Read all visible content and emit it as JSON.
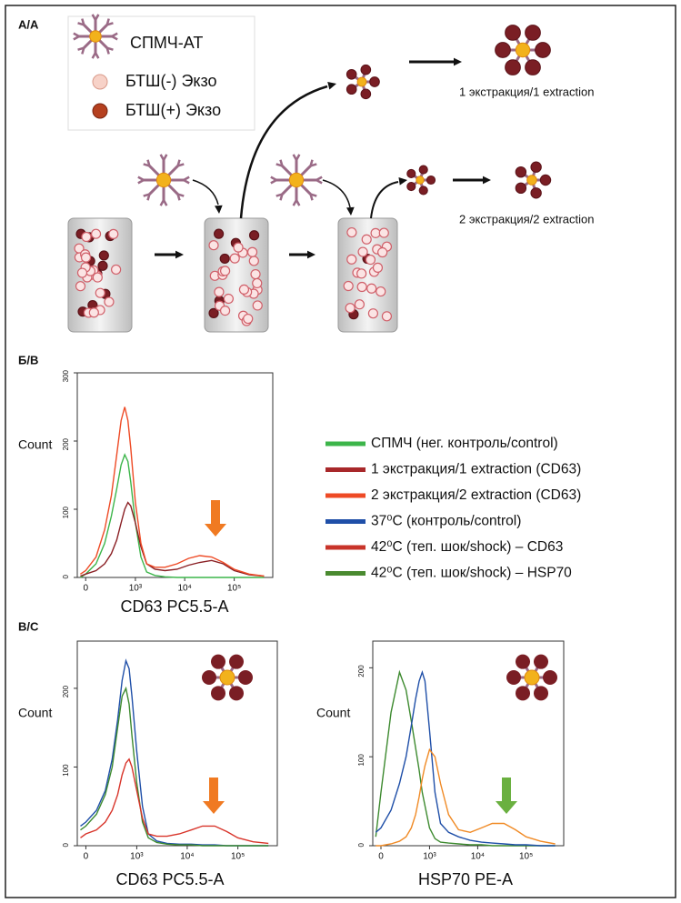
{
  "diagram": {
    "label": "А/А",
    "legend": [
      "СПМЧ-АТ",
      "БТШ(-) Экзо",
      "БТШ(+) Экзо"
    ],
    "steps": [
      "1 экстракция/1 extraction",
      "2 экстракция/2 extraction"
    ]
  },
  "legend": {
    "items": [
      {
        "label": "СПМЧ (нег. контроль/control)",
        "color": "#3cb54a"
      },
      {
        "label": "1 экстракция/1 extraction (CD63)",
        "color": "#a8282a"
      },
      {
        "label": "2 экстракция/2 extraction (CD63)",
        "color": "#ee4a25"
      },
      {
        "label": "37⁰C (контроль/control)",
        "color": "#1f4fa8"
      },
      {
        "label": "42⁰C (теп. шок/shock) – CD63",
        "color": "#c8342a"
      },
      {
        "label": "42⁰C (теп. шок/shock) – HSP70",
        "color": "#4a8a30"
      }
    ]
  },
  "chart_data": [
    {
      "type": "line",
      "panel_label": "Б/В",
      "xlabel": "CD63 PC5.5-A",
      "ylabel": "Count",
      "xscale": "biexponential",
      "x": [
        -50,
        0,
        100,
        200,
        300,
        400,
        500,
        600,
        700,
        800,
        1000,
        1300,
        1700,
        2500,
        4000,
        7000,
        12000,
        20000,
        35000,
        60000,
        100000,
        200000,
        400000
      ],
      "xlim": [
        -80,
        600000
      ],
      "xticks": [
        {
          "value": 0,
          "label": "0"
        },
        {
          "value": 1000,
          "label": "10³"
        },
        {
          "value": 10000,
          "label": "10⁴"
        },
        {
          "value": 100000,
          "label": "10⁵"
        }
      ],
      "ylim": [
        0,
        300
      ],
      "yticks": [
        0,
        100,
        200,
        300
      ],
      "series": [
        {
          "color": "#3cb54a",
          "values": [
            0,
            5,
            20,
            50,
            90,
            130,
            165,
            180,
            170,
            140,
            80,
            30,
            8,
            3,
            1,
            0,
            0,
            0,
            0,
            0,
            0,
            0,
            0
          ]
        },
        {
          "color": "#8a1f24",
          "values": [
            2,
            5,
            10,
            20,
            35,
            55,
            80,
            100,
            110,
            105,
            80,
            45,
            20,
            12,
            10,
            12,
            18,
            22,
            25,
            20,
            10,
            4,
            2
          ]
        },
        {
          "color": "#ee4a25",
          "values": [
            5,
            10,
            30,
            70,
            120,
            180,
            230,
            250,
            230,
            190,
            110,
            50,
            20,
            15,
            15,
            20,
            28,
            32,
            30,
            22,
            12,
            5,
            2
          ]
        }
      ]
    },
    {
      "type": "line",
      "panel_label": "В/С",
      "xlabel": "CD63 PC5.5-A",
      "ylabel": "Count",
      "xscale": "biexponential",
      "x": [
        -50,
        0,
        100,
        200,
        300,
        400,
        500,
        600,
        700,
        800,
        1000,
        1300,
        1700,
        2500,
        4000,
        7000,
        12000,
        20000,
        35000,
        60000,
        100000,
        200000,
        400000
      ],
      "xlim": [
        -80,
        600000
      ],
      "xticks": [
        {
          "value": 0,
          "label": "0"
        },
        {
          "value": 1000,
          "label": "10³"
        },
        {
          "value": 10000,
          "label": "10⁴"
        },
        {
          "value": 100000,
          "label": "10⁵"
        }
      ],
      "ylim": [
        0,
        260
      ],
      "yticks": [
        0,
        100,
        200
      ],
      "series": [
        {
          "color": "#1f4fa8",
          "values": [
            25,
            30,
            45,
            70,
            110,
            160,
            210,
            235,
            225,
            190,
            120,
            50,
            15,
            6,
            3,
            2,
            2,
            1,
            1,
            0,
            0,
            0,
            0
          ]
        },
        {
          "color": "#3d8a2f",
          "values": [
            20,
            25,
            40,
            65,
            100,
            150,
            190,
            200,
            180,
            140,
            80,
            30,
            10,
            4,
            2,
            1,
            1,
            0,
            0,
            0,
            0,
            0,
            0
          ]
        },
        {
          "color": "#d8342a",
          "values": [
            10,
            15,
            20,
            30,
            45,
            65,
            90,
            105,
            110,
            100,
            70,
            35,
            15,
            12,
            12,
            15,
            20,
            25,
            25,
            18,
            10,
            5,
            3
          ]
        }
      ]
    },
    {
      "type": "line",
      "xlabel": "HSP70 PE-A",
      "ylabel": "Count",
      "xscale": "biexponential",
      "x": [
        -50,
        0,
        100,
        200,
        300,
        400,
        500,
        600,
        700,
        800,
        1000,
        1300,
        1700,
        2500,
        4000,
        7000,
        12000,
        20000,
        35000,
        60000,
        100000,
        200000,
        400000
      ],
      "xlim": [
        -80,
        600000
      ],
      "xticks": [
        {
          "value": 0,
          "label": "0"
        },
        {
          "value": 1000,
          "label": "10³"
        },
        {
          "value": 10000,
          "label": "10⁴"
        },
        {
          "value": 100000,
          "label": "10⁵"
        }
      ],
      "ylim": [
        0,
        230
      ],
      "yticks": [
        0,
        100,
        200
      ],
      "series": [
        {
          "color": "#3d8a2f",
          "values": [
            10,
            60,
            150,
            195,
            175,
            140,
            110,
            85,
            60,
            45,
            20,
            8,
            4,
            3,
            2,
            1,
            1,
            0,
            0,
            0,
            0,
            0,
            0
          ]
        },
        {
          "color": "#1f4fa8",
          "values": [
            15,
            20,
            40,
            70,
            100,
            135,
            165,
            185,
            195,
            185,
            130,
            60,
            25,
            15,
            10,
            6,
            4,
            3,
            2,
            1,
            1,
            0,
            0
          ]
        },
        {
          "color": "#f08a25",
          "values": [
            0,
            0,
            2,
            5,
            10,
            20,
            35,
            55,
            75,
            90,
            108,
            100,
            70,
            35,
            18,
            15,
            20,
            25,
            25,
            18,
            10,
            5,
            2
          ]
        }
      ]
    }
  ]
}
